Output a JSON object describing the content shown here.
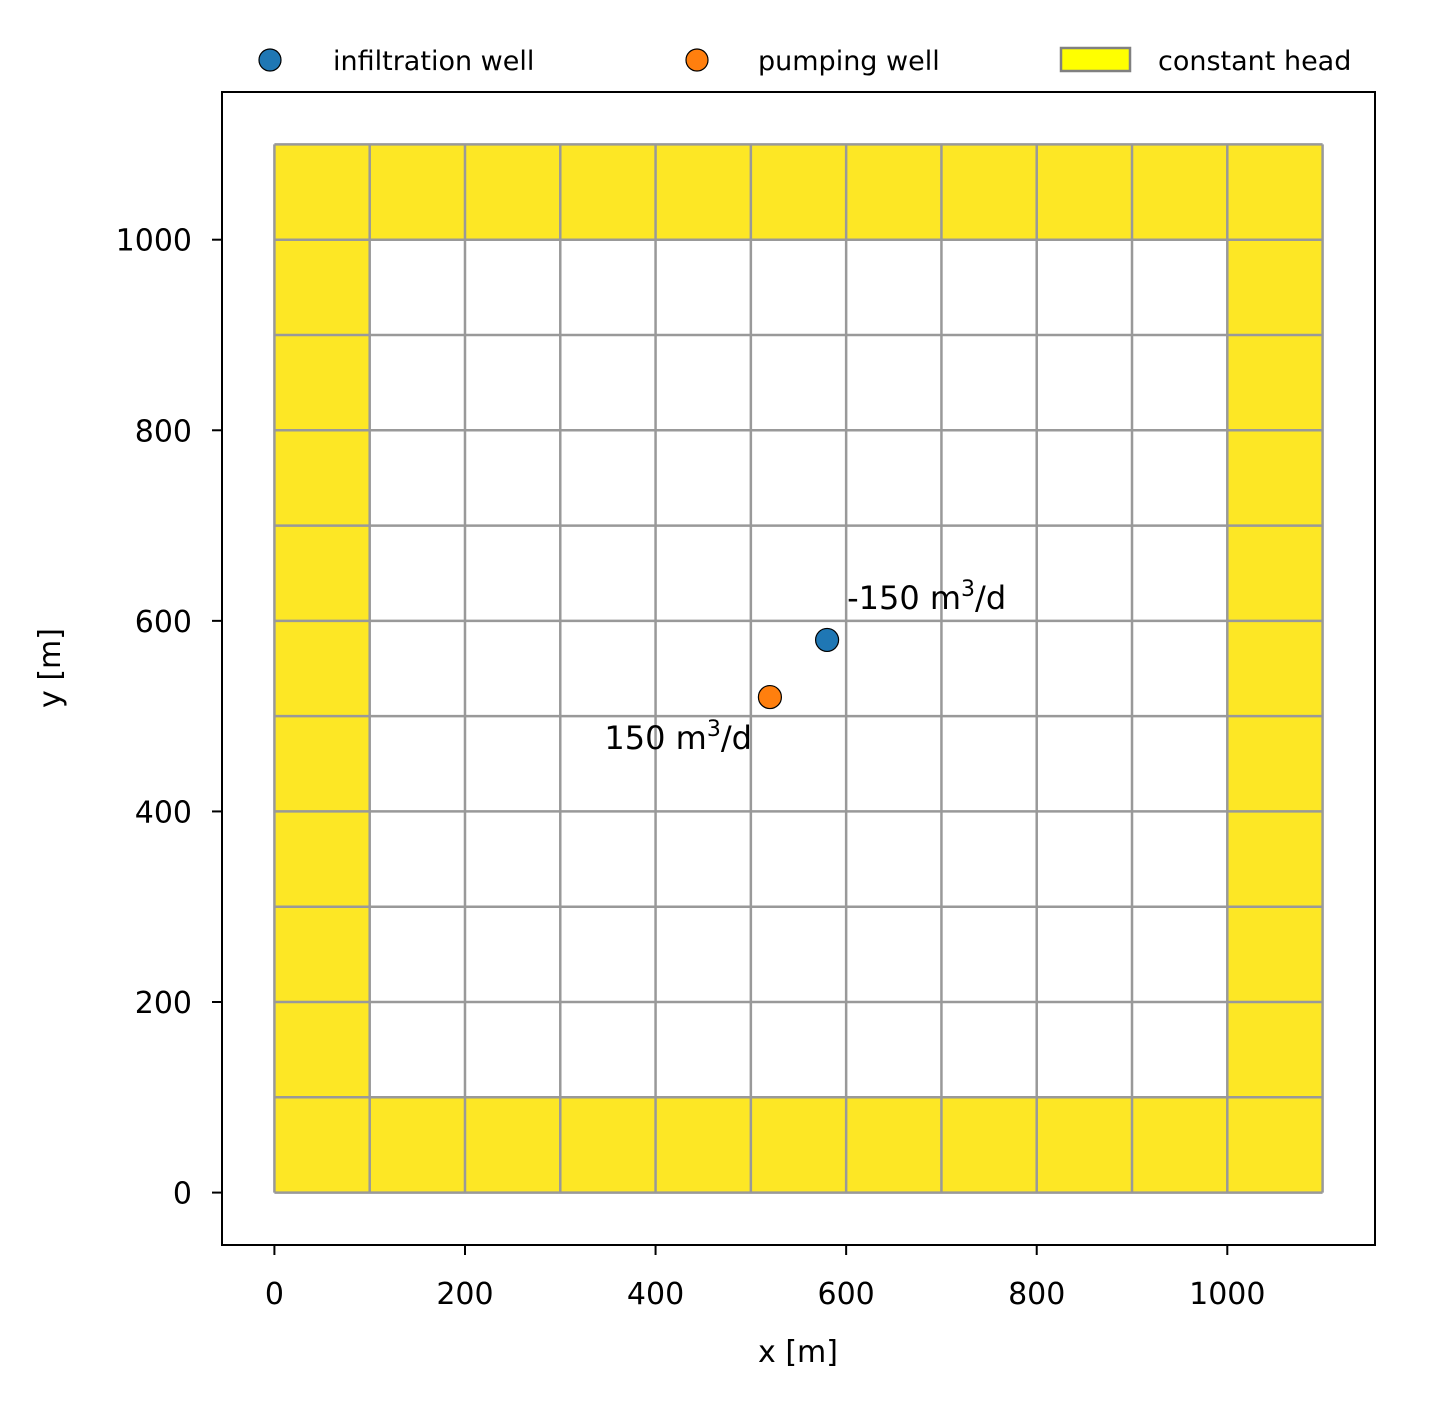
{
  "chart_data": {
    "type": "scatter",
    "xlabel": "x [m]",
    "ylabel": "y [m]",
    "xlim": [
      -55,
      1155
    ],
    "ylim": [
      -55,
      1155
    ],
    "xticks": [
      0,
      200,
      400,
      600,
      800,
      1000
    ],
    "yticks": [
      0,
      200,
      400,
      600,
      800,
      1000
    ],
    "xtick_labels": [
      "0",
      "200",
      "400",
      "600",
      "800",
      "1000"
    ],
    "ytick_labels": [
      "0",
      "200",
      "400",
      "600",
      "800",
      "1000"
    ],
    "legend_position": "top, outside plot",
    "legend": [
      {
        "label": "infiltration well",
        "kind": "marker",
        "color": "#1f77b4"
      },
      {
        "label": "pumping well",
        "kind": "marker",
        "color": "#ff7f0e"
      },
      {
        "label": "constant head",
        "kind": "patch",
        "color": "#ffff00",
        "edge": "#808080"
      }
    ],
    "grid": {
      "nrow": 11,
      "ncol": 11,
      "cell_size": 100,
      "extent": [
        0,
        1100,
        0,
        1100
      ],
      "line_color": "#999999",
      "constant_head_color": "#fde725",
      "constant_head_cells": "outer ring of cells (first/last row and column)"
    },
    "series": [
      {
        "name": "infiltration well",
        "color": "#1f77b4",
        "points": [
          {
            "x": 580,
            "y": 580,
            "label": {
              "base": "-150 m",
              "sup": "3",
              "rest": "/d"
            }
          }
        ]
      },
      {
        "name": "pumping well",
        "color": "#ff7f0e",
        "points": [
          {
            "x": 520,
            "y": 520,
            "label": {
              "base": "150 m",
              "sup": "3",
              "rest": "/d"
            }
          }
        ]
      }
    ]
  }
}
